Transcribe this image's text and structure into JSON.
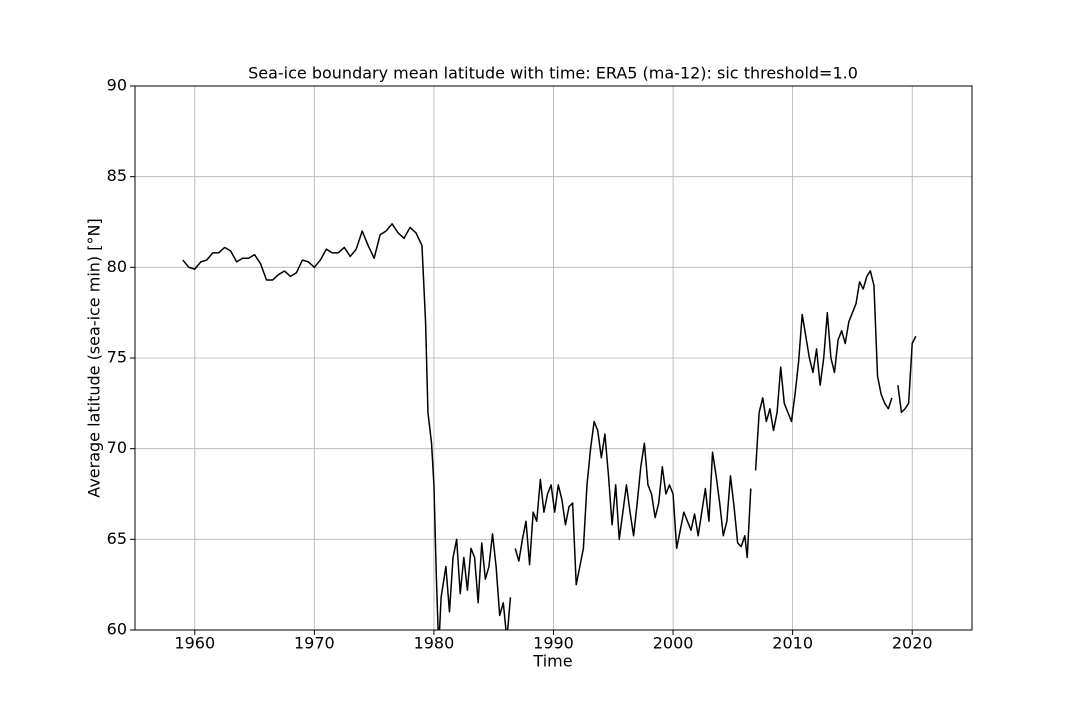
{
  "chart_data": {
    "type": "line",
    "title": "Sea-ice boundary mean latitude with time: ERA5 (ma-12): sic threshold=1.0",
    "x_label": "Time",
    "y_label": "Average latitude (sea-ice min) [°N]",
    "x": [
      1959.0,
      1959.5,
      1960.0,
      1960.5,
      1961.0,
      1961.5,
      1962.0,
      1962.5,
      1963.0,
      1963.5,
      1964.0,
      1964.5,
      1965.0,
      1965.5,
      1966.0,
      1966.5,
      1967.0,
      1967.5,
      1968.0,
      1968.5,
      1969.0,
      1969.5,
      1970.0,
      1970.5,
      1971.0,
      1971.5,
      1972.0,
      1972.5,
      1973.0,
      1973.5,
      1974.0,
      1974.5,
      1975.0,
      1975.5,
      1976.0,
      1976.5,
      1977.0,
      1977.5,
      1978.0,
      1978.5,
      1979.0,
      1979.3,
      1979.5,
      1979.8,
      1980.0,
      1980.2,
      1980.4,
      1980.6,
      1981.0,
      1981.3,
      1981.6,
      1981.9,
      1982.2,
      1982.5,
      1982.8,
      1983.1,
      1983.4,
      1983.7,
      1984.0,
      1984.3,
      1984.6,
      1984.9,
      1985.2,
      1985.5,
      1985.8,
      1986.1,
      1986.4,
      1986.6,
      1986.8,
      1987.1,
      1987.4,
      1987.7,
      1988.0,
      1988.3,
      1988.6,
      1988.9,
      1989.2,
      1989.5,
      1989.8,
      1990.1,
      1990.4,
      1990.7,
      1991.0,
      1991.3,
      1991.6,
      1991.9,
      1992.2,
      1992.5,
      1992.8,
      1993.1,
      1993.4,
      1993.7,
      1994.0,
      1994.3,
      1994.6,
      1994.9,
      1995.2,
      1995.5,
      1995.8,
      1996.1,
      1996.4,
      1996.7,
      1997.0,
      1997.3,
      1997.6,
      1997.9,
      1998.2,
      1998.5,
      1998.8,
      1999.1,
      1999.4,
      1999.7,
      2000.0,
      2000.3,
      2000.6,
      2000.9,
      2001.2,
      2001.5,
      2001.8,
      2002.1,
      2002.4,
      2002.7,
      2003.0,
      2003.3,
      2003.6,
      2003.9,
      2004.2,
      2004.5,
      2004.8,
      2005.1,
      2005.4,
      2005.7,
      2006.0,
      2006.2,
      2006.5,
      2006.7,
      2006.9,
      2007.2,
      2007.5,
      2007.8,
      2008.1,
      2008.4,
      2008.7,
      2009.0,
      2009.3,
      2009.6,
      2009.9,
      2010.2,
      2010.5,
      2010.8,
      2011.1,
      2011.4,
      2011.7,
      2012.0,
      2012.3,
      2012.6,
      2012.9,
      2013.2,
      2013.5,
      2013.8,
      2014.1,
      2014.4,
      2014.7,
      2015.0,
      2015.3,
      2015.6,
      2015.9,
      2016.2,
      2016.5,
      2016.8,
      2017.1,
      2017.4,
      2017.7,
      2018.0,
      2018.3,
      2018.5,
      2018.8,
      2019.1,
      2019.4,
      2019.7,
      2020.0,
      2020.3
    ],
    "series": [
      {
        "color": "#000000",
        "values": [
          80.4,
          80.0,
          79.9,
          80.3,
          80.4,
          80.8,
          80.8,
          81.1,
          80.9,
          80.3,
          80.5,
          80.5,
          80.7,
          80.2,
          79.3,
          79.3,
          79.6,
          79.8,
          79.5,
          79.7,
          80.4,
          80.3,
          80.0,
          80.4,
          81.0,
          80.8,
          80.8,
          81.1,
          80.6,
          81.0,
          82.0,
          81.2,
          80.5,
          81.8,
          82.0,
          82.4,
          81.9,
          81.6,
          82.2,
          81.9,
          81.2,
          77.0,
          72.0,
          70.3,
          68.0,
          63.0,
          59.0,
          61.8,
          63.5,
          61.0,
          64.0,
          65.0,
          62.0,
          64.0,
          62.2,
          64.5,
          64.0,
          61.5,
          64.8,
          62.8,
          63.5,
          65.3,
          63.5,
          60.8,
          61.5,
          59.5,
          61.8,
          null,
          64.5,
          63.8,
          65.0,
          66.0,
          63.6,
          66.5,
          66.0,
          68.3,
          66.5,
          67.5,
          68.0,
          66.5,
          68.0,
          67.2,
          65.8,
          66.8,
          67.0,
          62.5,
          63.5,
          64.5,
          68.0,
          70.0,
          71.5,
          71.0,
          69.5,
          70.8,
          68.5,
          65.8,
          68.0,
          65.0,
          66.5,
          68.0,
          66.5,
          65.2,
          67.0,
          69.0,
          70.3,
          68.0,
          67.5,
          66.2,
          67.0,
          69.0,
          67.5,
          68.0,
          67.5,
          64.5,
          65.5,
          66.5,
          66.0,
          65.5,
          66.4,
          65.2,
          66.5,
          67.8,
          66.0,
          69.8,
          68.5,
          67.0,
          65.2,
          66.0,
          68.5,
          66.8,
          64.8,
          64.6,
          65.2,
          64.0,
          67.8,
          null,
          68.8,
          72.0,
          72.8,
          71.5,
          72.2,
          71.0,
          72.0,
          74.5,
          72.5,
          72.0,
          71.5,
          73.0,
          74.8,
          77.4,
          76.2,
          75.0,
          74.2,
          75.5,
          73.5,
          75.0,
          77.5,
          75.0,
          74.2,
          76.0,
          76.5,
          75.8,
          77.0,
          77.5,
          78.0,
          79.2,
          78.8,
          79.5,
          79.8,
          79.0,
          74.0,
          73.0,
          72.5,
          72.2,
          72.8,
          null,
          73.5,
          72.0,
          72.2,
          72.5,
          75.8,
          76.2
        ]
      }
    ],
    "xlim": [
      1955,
      2025
    ],
    "xticks": [
      1960,
      1970,
      1980,
      1990,
      2000,
      2010,
      2020
    ],
    "ylim": [
      60,
      90
    ],
    "yticks": [
      60,
      65,
      70,
      75,
      80,
      85,
      90
    ],
    "grid": true
  }
}
